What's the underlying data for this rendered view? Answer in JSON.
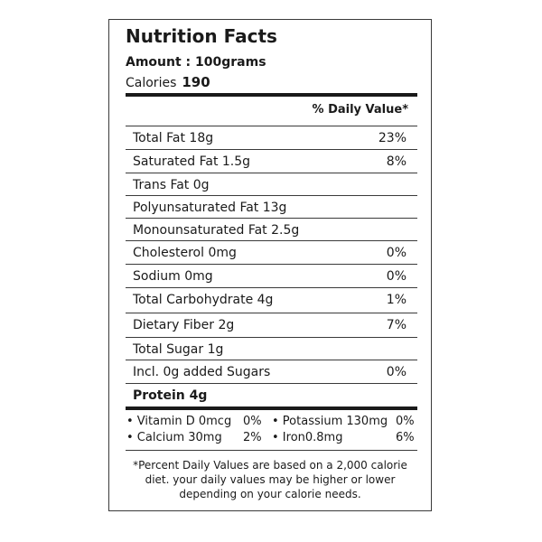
{
  "label": {
    "title": "Nutrition Facts",
    "amount": "Amount : 100grams",
    "calories_label": "Calories",
    "calories_value": "190",
    "daily_value_header": "% Daily Value*",
    "rows": [
      {
        "name": "Total Fat 18g",
        "pct": "23%"
      },
      {
        "name": "Saturated Fat 1.5g",
        "pct": "8%"
      },
      {
        "name": "Trans Fat 0g",
        "pct": ""
      },
      {
        "name": "Polyunsaturated Fat 13g",
        "pct": ""
      },
      {
        "name": "Monounsaturated Fat 2.5g",
        "pct": ""
      },
      {
        "name": "Cholesterol 0mg",
        "pct": "0%"
      },
      {
        "name": "Sodium 0mg",
        "pct": "0%"
      },
      {
        "name": "Total Carbohydrate 4g",
        "pct": "1%"
      },
      {
        "name": "Dietary Fiber 2g",
        "pct": "7%"
      },
      {
        "name": "Total Sugar 1g",
        "pct": ""
      },
      {
        "name": "Incl. 0g added Sugars",
        "pct": "0%"
      },
      {
        "name": "Protein 4g",
        "pct": ""
      }
    ],
    "vitamins": [
      {
        "name": "• Vitamin D 0mcg",
        "pct": "0%"
      },
      {
        "name": "• Potassium 130mg",
        "pct": "0%"
      },
      {
        "name": "• Calcium 30mg",
        "pct": "2%"
      },
      {
        "name": "• Iron0.8mg",
        "pct": "6%"
      }
    ],
    "footnote": "*Percent Daily Values are based on a 2,000 calorie diet. your daily values may be higher or lower depending on your calorie needs."
  }
}
